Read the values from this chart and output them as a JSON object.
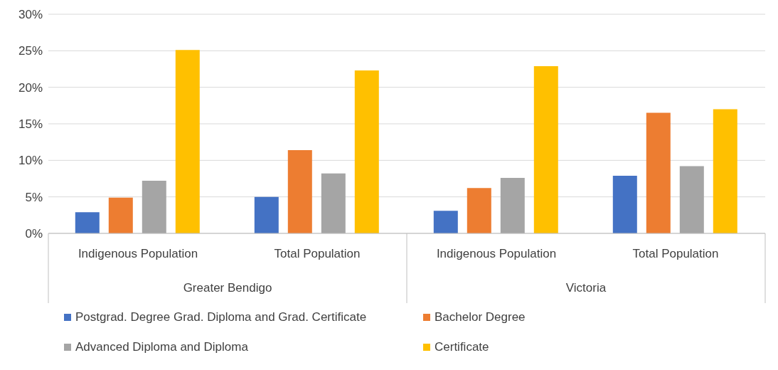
{
  "chart_data": {
    "type": "bar",
    "categories": [
      "Indigenous Population",
      "Total Population",
      "Indigenous Population",
      "Total Population"
    ],
    "annotations": [
      "Greater Bendigo",
      "Victoria"
    ],
    "series": [
      {
        "name": "Postgrad. Degree Grad. Diploma  and Grad. Certificate",
        "color": "#4472c4",
        "values": [
          2.9,
          5.0,
          3.1,
          7.9
        ]
      },
      {
        "name": "Bachelor Degree",
        "color": "#ed7d31",
        "values": [
          4.9,
          11.4,
          6.2,
          16.5
        ]
      },
      {
        "name": "Advanced Diploma and Diploma",
        "color": "#a5a5a5",
        "values": [
          7.2,
          8.2,
          7.6,
          9.2
        ]
      },
      {
        "name": "Certificate",
        "color": "#ffc000",
        "values": [
          25.1,
          22.3,
          22.9,
          17.0
        ]
      }
    ],
    "ylim": [
      0,
      30
    ],
    "yticks": [
      {
        "value": 0,
        "label": "0%"
      },
      {
        "value": 5,
        "label": "5%"
      },
      {
        "value": 10,
        "label": "10%"
      },
      {
        "value": 15,
        "label": "15%"
      },
      {
        "value": 20,
        "label": "20%"
      },
      {
        "value": 25,
        "label": "25%"
      },
      {
        "value": 30,
        "label": "30%"
      }
    ],
    "grid": "y",
    "legend": "bottom"
  }
}
